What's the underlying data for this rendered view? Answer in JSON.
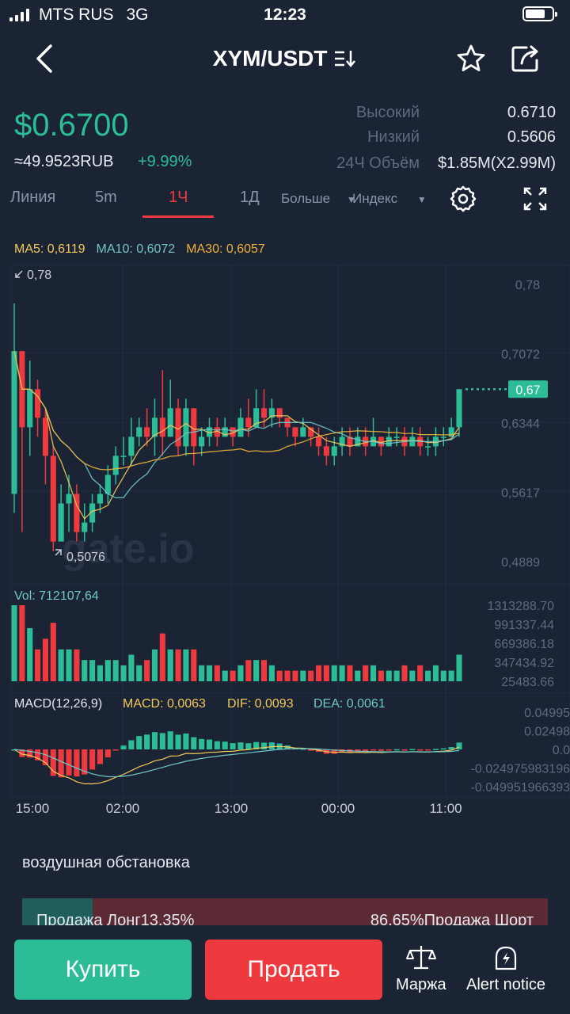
{
  "status": {
    "carrier": "MTS RUS",
    "network": "3G",
    "time": "12:23"
  },
  "header": {
    "pair": "XYM/USDT",
    "back_icon": "chevron-left-icon",
    "favorite_icon": "star-icon",
    "share_icon": "share-icon"
  },
  "ticker": {
    "price": "$0.6700",
    "price_rub": "≈49.9523RUB",
    "change_pct": "+9.99%",
    "high_label": "Высокий",
    "high_value": "0.6710",
    "low_label": "Низкий",
    "low_value": "0.5606",
    "volume_label": "24Ч Объём",
    "volume_value": "$1.85M(X2.99M)"
  },
  "tabs": {
    "line": "Линия",
    "m5": "5m",
    "h1": "1Ч",
    "d1": "1Д",
    "more": "Больше",
    "index": "Индекс"
  },
  "ma": {
    "ma5": "MA5: 0,6119",
    "ma10": "MA10: 0,6072",
    "ma30": "MA30: 0,6057"
  },
  "colors": {
    "up": "#2dbd96",
    "down": "#ee3a3f",
    "ma5": "#f3c95a",
    "ma10": "#6fc7c9",
    "ma30": "#f0b23a",
    "bg": "#1b2435"
  },
  "chart_data": {
    "type": "candlestick",
    "price_axis_ticks": [
      "0,78",
      "0,7072",
      "0,6344",
      "0,5617",
      "0,4889"
    ],
    "price_ticks_values": [
      0.78,
      0.7072,
      0.6344,
      0.5617,
      0.4889
    ],
    "price_range": [
      0.4889,
      0.78
    ],
    "max_label": "0,78",
    "min_label": "0,5076",
    "last_price_label": "0,67",
    "last_price": 0.67,
    "watermark": "gate.io",
    "time_labels": [
      "15:00",
      "02:00",
      "13:00",
      "00:00",
      "11:00"
    ],
    "candles": [
      [
        0.56,
        0.71,
        0.76,
        0.54
      ],
      [
        0.71,
        0.63,
        0.71,
        0.52
      ],
      [
        0.63,
        0.67,
        0.7,
        0.6
      ],
      [
        0.67,
        0.64,
        0.68,
        0.62
      ],
      [
        0.64,
        0.6,
        0.65,
        0.57
      ],
      [
        0.6,
        0.51,
        0.61,
        0.5
      ],
      [
        0.51,
        0.55,
        0.57,
        0.51
      ],
      [
        0.55,
        0.56,
        0.58,
        0.52
      ],
      [
        0.56,
        0.52,
        0.57,
        0.51
      ],
      [
        0.52,
        0.53,
        0.55,
        0.51
      ],
      [
        0.53,
        0.55,
        0.56,
        0.52
      ],
      [
        0.55,
        0.56,
        0.57,
        0.54
      ],
      [
        0.56,
        0.58,
        0.59,
        0.55
      ],
      [
        0.58,
        0.6,
        0.61,
        0.57
      ],
      [
        0.6,
        0.6,
        0.62,
        0.59
      ],
      [
        0.6,
        0.62,
        0.64,
        0.59
      ],
      [
        0.62,
        0.63,
        0.64,
        0.61
      ],
      [
        0.63,
        0.62,
        0.65,
        0.61
      ],
      [
        0.62,
        0.64,
        0.66,
        0.6
      ],
      [
        0.64,
        0.62,
        0.69,
        0.6
      ],
      [
        0.62,
        0.65,
        0.68,
        0.62
      ],
      [
        0.65,
        0.61,
        0.66,
        0.6
      ],
      [
        0.61,
        0.65,
        0.66,
        0.6
      ],
      [
        0.65,
        0.61,
        0.65,
        0.59
      ],
      [
        0.61,
        0.62,
        0.63,
        0.6
      ],
      [
        0.62,
        0.63,
        0.64,
        0.61
      ],
      [
        0.63,
        0.62,
        0.64,
        0.61
      ],
      [
        0.62,
        0.63,
        0.64,
        0.62
      ],
      [
        0.63,
        0.62,
        0.63,
        0.61
      ],
      [
        0.62,
        0.64,
        0.65,
        0.62
      ],
      [
        0.64,
        0.63,
        0.66,
        0.62
      ],
      [
        0.63,
        0.65,
        0.67,
        0.63
      ],
      [
        0.65,
        0.64,
        0.67,
        0.63
      ],
      [
        0.64,
        0.65,
        0.66,
        0.63
      ],
      [
        0.65,
        0.64,
        0.65,
        0.63
      ],
      [
        0.64,
        0.63,
        0.64,
        0.62
      ],
      [
        0.63,
        0.62,
        0.63,
        0.61
      ],
      [
        0.62,
        0.63,
        0.64,
        0.62
      ],
      [
        0.63,
        0.62,
        0.63,
        0.61
      ],
      [
        0.62,
        0.61,
        0.63,
        0.6
      ],
      [
        0.61,
        0.6,
        0.62,
        0.59
      ],
      [
        0.6,
        0.61,
        0.62,
        0.59
      ],
      [
        0.61,
        0.62,
        0.63,
        0.6
      ],
      [
        0.62,
        0.61,
        0.63,
        0.6
      ],
      [
        0.61,
        0.62,
        0.63,
        0.61
      ],
      [
        0.62,
        0.61,
        0.63,
        0.6
      ],
      [
        0.61,
        0.62,
        0.64,
        0.61
      ],
      [
        0.62,
        0.61,
        0.62,
        0.6
      ],
      [
        0.61,
        0.62,
        0.63,
        0.61
      ],
      [
        0.62,
        0.62,
        0.63,
        0.61
      ],
      [
        0.62,
        0.61,
        0.63,
        0.6
      ],
      [
        0.61,
        0.62,
        0.63,
        0.61
      ],
      [
        0.62,
        0.61,
        0.63,
        0.6
      ],
      [
        0.61,
        0.61,
        0.62,
        0.6
      ],
      [
        0.61,
        0.62,
        0.63,
        0.6
      ],
      [
        0.62,
        0.62,
        0.63,
        0.61
      ],
      [
        0.62,
        0.63,
        0.64,
        0.62
      ],
      [
        0.63,
        0.67,
        0.67,
        0.62
      ]
    ],
    "volume": {
      "label": "Vol: 712107,64",
      "ticks": [
        "1313288.70",
        "991337.44",
        "669386.18",
        "347434.92",
        "25483.66"
      ],
      "ticks_values": [
        1313288.7,
        991337.44,
        669386.18,
        347434.92,
        25483.66
      ]
    },
    "macd": {
      "label": "MACD(12,26,9)",
      "macd": "MACD: 0,0063",
      "dif": "DIF: 0,0093",
      "dea": "DEA: 0,0061",
      "ticks": [
        "0.04995",
        "0.02498",
        "0.0",
        "-0.024975983196",
        "-0.049951966393"
      ],
      "ticks_values": [
        0.04995,
        0.02498,
        0.0,
        -0.024975983196,
        -0.049951966393
      ]
    }
  },
  "sentiment": {
    "title": "воздушная обстановка",
    "long": "Продажа Лонг13.35%",
    "short": "86.65%Продажа Шорт",
    "long_pct": 13.35
  },
  "actions": {
    "buy": "Купить",
    "sell": "Продать",
    "margin": "Маржа",
    "alert": "Alert notice"
  }
}
